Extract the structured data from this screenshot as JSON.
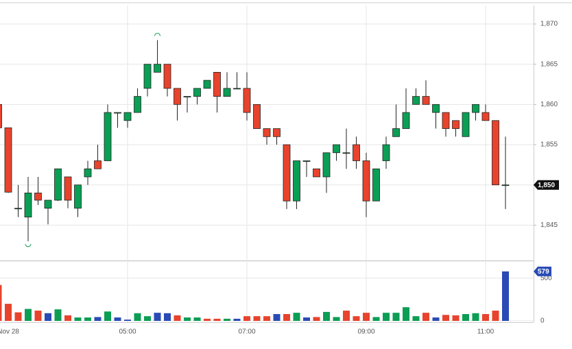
{
  "chart_data": {
    "type": "candlestick",
    "open": [
      1860,
      1857.1,
      1847.1,
      1846,
      1849,
      1847.1,
      1848.1,
      1851,
      1847.1,
      1851,
      1853,
      1853,
      1859,
      1858,
      1859,
      1862,
      1864,
      1865,
      1862,
      1861,
      1861,
      1862,
      1864,
      1861,
      1862,
      1862,
      1860,
      1857,
      1857,
      1855,
      1848,
      1853,
      1852,
      1851,
      1854,
      1854,
      1855,
      1853,
      1848,
      1853,
      1856,
      1857,
      1860,
      1861,
      1859,
      1859,
      1858,
      1856,
      1859,
      1859,
      1858,
      1850
    ],
    "high": [
      1860,
      1857.1,
      1850,
      1851,
      1851,
      1848.1,
      1852,
      1851,
      1850,
      1853,
      1855,
      1860,
      1859,
      1859,
      1862,
      1865,
      1868,
      1865,
      1862,
      1861,
      1862,
      1863,
      1864,
      1864,
      1864,
      1864,
      1860,
      1857,
      1857,
      1855,
      1853,
      1853,
      1852,
      1854,
      1855,
      1857,
      1856,
      1854,
      1852,
      1856,
      1860,
      1862,
      1862,
      1863,
      1860,
      1859,
      1858,
      1859,
      1860,
      1860,
      1858,
      1856
    ],
    "low": [
      1857,
      1849,
      1846,
      1843,
      1847.5,
      1845.1,
      1848,
      1847.1,
      1846,
      1850,
      1852,
      1853,
      1857.1,
      1857.1,
      1859,
      1861,
      1864,
      1861,
      1858,
      1859,
      1860,
      1862,
      1859,
      1861,
      1862,
      1858,
      1857,
      1855,
      1855,
      1847,
      1847,
      1851,
      1851,
      1849,
      1853,
      1852,
      1852,
      1846,
      1848,
      1852,
      1856,
      1857,
      1860,
      1860,
      1857,
      1856,
      1856,
      1856,
      1858,
      1858,
      1850,
      1847
    ],
    "close": [
      1857.1,
      1849.1,
      1847.1,
      1849,
      1848.1,
      1848.1,
      1852,
      1848.1,
      1850,
      1852,
      1852,
      1859,
      1859,
      1859,
      1861,
      1865,
      1865,
      1862,
      1860,
      1861,
      1862,
      1863,
      1861,
      1862,
      1862,
      1859,
      1857,
      1856,
      1856,
      1848,
      1853,
      1853,
      1851,
      1854,
      1855,
      1854,
      1853,
      1848,
      1852,
      1855,
      1857,
      1859,
      1861,
      1860,
      1860,
      1857,
      1857,
      1859,
      1860,
      1858,
      1850,
      1850
    ],
    "up_color": "#0b9e55",
    "down_color": "#e8432c",
    "ylim": [
      1840.6,
      1872.3
    ],
    "yticks": [
      {
        "value": 1845,
        "label": "1,845"
      },
      {
        "value": 1850,
        "label": "1,850"
      },
      {
        "value": 1855,
        "label": "1,855"
      },
      {
        "value": 1860,
        "label": "1,860"
      },
      {
        "value": 1865,
        "label": "1,865"
      },
      {
        "value": 1870,
        "label": "1,870"
      }
    ],
    "last_price": {
      "value": 1850,
      "label": "1,850"
    },
    "xticks": [
      {
        "value": 1,
        "label": "Nov 28"
      },
      {
        "value": 13,
        "label": "05:00"
      },
      {
        "value": 25,
        "label": "07:00"
      },
      {
        "value": 37,
        "label": "09:00"
      },
      {
        "value": 49,
        "label": "11:00"
      }
    ],
    "grid": true,
    "volume": {
      "values": [
        420,
        200,
        100,
        140,
        120,
        90,
        135,
        65,
        40,
        40,
        45,
        110,
        40,
        15,
        90,
        55,
        95,
        90,
        65,
        40,
        40,
        25,
        25,
        25,
        25,
        55,
        55,
        55,
        80,
        80,
        95,
        40,
        45,
        105,
        45,
        120,
        55,
        95,
        45,
        95,
        95,
        160,
        55,
        95,
        40,
        70,
        65,
        80,
        90,
        80,
        120,
        579
      ],
      "colors": [
        "#e8432c",
        "#e8432c",
        "#e8432c",
        "#0b9e55",
        "#e8432c",
        "#2a4bb5",
        "#0b9e55",
        "#e8432c",
        "#0b9e55",
        "#0b9e55",
        "#2a4bb5",
        "#0b9e55",
        "#2a4bb5",
        "#2a4bb5",
        "#0b9e55",
        "#0b9e55",
        "#2a4bb5",
        "#2a4bb5",
        "#e8432c",
        "#0b9e55",
        "#0b9e55",
        "#e8432c",
        "#e8432c",
        "#0b9e55",
        "#2a4bb5",
        "#e8432c",
        "#e8432c",
        "#e8432c",
        "#2a4bb5",
        "#e8432c",
        "#0b9e55",
        "#2a4bb5",
        "#e8432c",
        "#0b9e55",
        "#0b9e55",
        "#e8432c",
        "#e8432c",
        "#e8432c",
        "#0b9e55",
        "#0b9e55",
        "#0b9e55",
        "#0b9e55",
        "#0b9e55",
        "#e8432c",
        "#2a4bb5",
        "#e8432c",
        "#e8432c",
        "#0b9e55",
        "#0b9e55",
        "#e8432c",
        "#e8432c",
        "#2a4bb5"
      ],
      "ylim": [
        0,
        690
      ],
      "yticks": [
        0,
        500
      ],
      "last": {
        "value": 579,
        "label": "579"
      },
      "last_color": "#2a4bb5"
    }
  }
}
